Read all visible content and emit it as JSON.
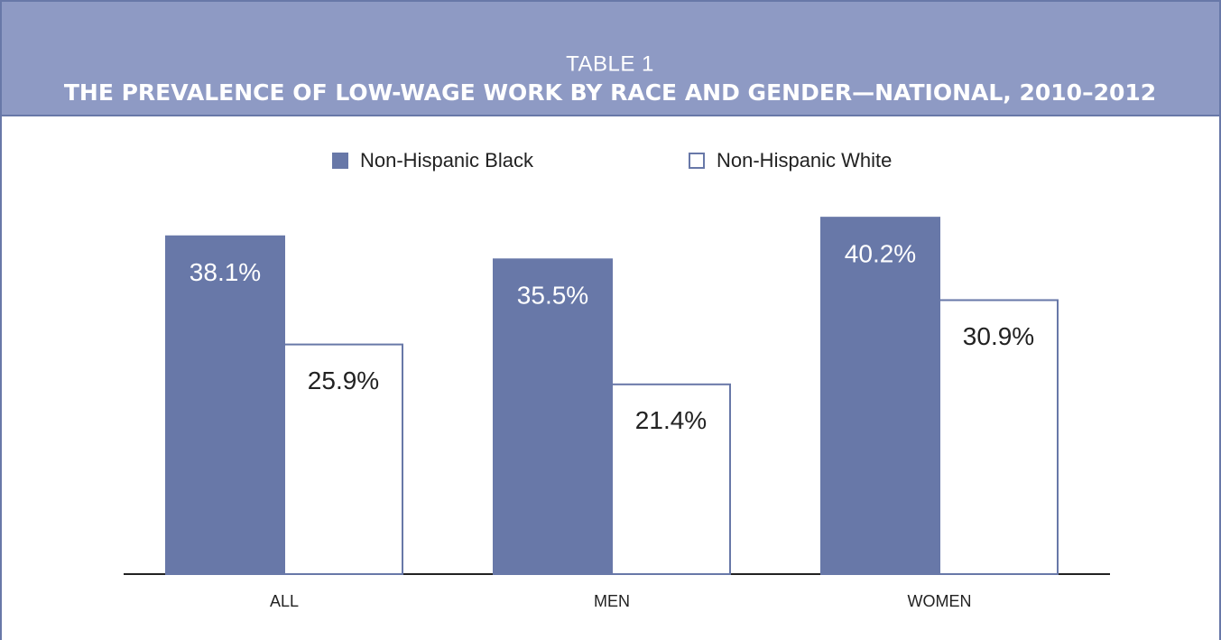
{
  "chart_data": {
    "type": "bar",
    "table_label": "TABLE 1",
    "title": "THE PREVALENCE OF LOW-WAGE WORK BY RACE AND GENDER—NATIONAL, 2010–2012",
    "categories": [
      "ALL",
      "MEN",
      "WOMEN"
    ],
    "series": [
      {
        "name": "Non-Hispanic Black",
        "color": "#6878a8",
        "values": [
          38.1,
          35.5,
          40.2
        ],
        "value_labels": [
          "38.1%",
          "35.5%",
          "40.2%"
        ]
      },
      {
        "name": "Non-Hispanic White",
        "color": "#ffffff",
        "values": [
          25.9,
          21.4,
          30.9
        ],
        "value_labels": [
          "25.9%",
          "21.4%",
          "30.9%"
        ]
      }
    ],
    "ylim": [
      0,
      45
    ]
  }
}
